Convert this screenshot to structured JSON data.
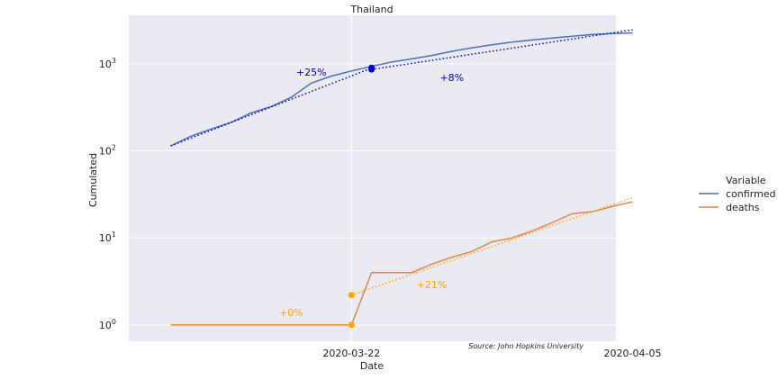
{
  "chart_data": {
    "type": "line",
    "title": "Thailand",
    "xlabel": "Date",
    "ylabel": "Cumulated",
    "yscale": "log",
    "ylim": [
      0.65,
      3600
    ],
    "grid": true,
    "legend": {
      "title": "Variable",
      "position": "right",
      "entries": [
        {
          "label": "confirmed",
          "color": "#4c72b0"
        },
        {
          "label": "deaths",
          "color": "#dd8452"
        }
      ]
    },
    "x_ticks": [
      {
        "date": "2020-03-22",
        "label": "2020-03-22"
      },
      {
        "date": "2020-04-05",
        "label": "2020-04-05"
      }
    ],
    "series": [
      {
        "name": "confirmed",
        "color": "#4c72b0",
        "points": [
          [
            "2020-03-13",
            114
          ],
          [
            "2020-03-14",
            147
          ],
          [
            "2020-03-15",
            177
          ],
          [
            "2020-03-16",
            212
          ],
          [
            "2020-03-17",
            272
          ],
          [
            "2020-03-18",
            322
          ],
          [
            "2020-03-19",
            411
          ],
          [
            "2020-03-20",
            599
          ],
          [
            "2020-03-21",
            721
          ],
          [
            "2020-03-22",
            827
          ],
          [
            "2020-03-23",
            934
          ],
          [
            "2020-03-24",
            1045
          ],
          [
            "2020-03-25",
            1136
          ],
          [
            "2020-03-26",
            1245
          ],
          [
            "2020-03-27",
            1388
          ],
          [
            "2020-03-28",
            1524
          ],
          [
            "2020-03-29",
            1651
          ],
          [
            "2020-03-30",
            1771
          ],
          [
            "2020-03-31",
            1875
          ],
          [
            "2020-04-01",
            1978
          ],
          [
            "2020-04-02",
            2067
          ],
          [
            "2020-04-03",
            2169
          ],
          [
            "2020-04-04",
            2220
          ],
          [
            "2020-04-05",
            2258
          ]
        ]
      },
      {
        "name": "deaths",
        "color": "#dd8452",
        "points": [
          [
            "2020-03-13",
            1
          ],
          [
            "2020-03-14",
            1
          ],
          [
            "2020-03-15",
            1
          ],
          [
            "2020-03-16",
            1
          ],
          [
            "2020-03-17",
            1
          ],
          [
            "2020-03-18",
            1
          ],
          [
            "2020-03-19",
            1
          ],
          [
            "2020-03-20",
            1
          ],
          [
            "2020-03-21",
            1
          ],
          [
            "2020-03-22",
            1
          ],
          [
            "2020-03-23",
            4
          ],
          [
            "2020-03-24",
            4
          ],
          [
            "2020-03-25",
            4
          ],
          [
            "2020-03-26",
            5
          ],
          [
            "2020-03-27",
            6
          ],
          [
            "2020-03-28",
            7
          ],
          [
            "2020-03-29",
            9
          ],
          [
            "2020-03-30",
            10
          ],
          [
            "2020-03-31",
            12
          ],
          [
            "2020-04-01",
            15
          ],
          [
            "2020-04-02",
            19
          ],
          [
            "2020-04-03",
            20
          ],
          [
            "2020-04-04",
            23
          ],
          [
            "2020-04-05",
            26
          ]
        ]
      }
    ],
    "trend_lines": [
      {
        "series": "confirmed",
        "color": "#0000cc",
        "style": "dotted",
        "segments": [
          {
            "from": [
              "2020-03-13",
              114
            ],
            "to": [
              "2020-03-23",
              890
            ],
            "label": "+25%",
            "label_at": [
              "2020-03-20",
              800
            ]
          },
          {
            "from": [
              "2020-03-23",
              860
            ],
            "to": [
              "2020-04-05",
              2450
            ],
            "label": "+8%",
            "label_at": [
              "2020-03-27",
              700
            ]
          }
        ],
        "markers": [
          [
            "2020-03-23",
            900
          ],
          [
            "2020-03-23",
            860
          ]
        ]
      },
      {
        "series": "deaths",
        "color": "#ffa500",
        "style": "dotted",
        "segments": [
          {
            "from": [
              "2020-03-13",
              1
            ],
            "to": [
              "2020-03-22",
              1
            ],
            "label": "+0%",
            "label_at": [
              "2020-03-19",
              1.4
            ]
          },
          {
            "from": [
              "2020-03-22",
              2.2
            ],
            "to": [
              "2020-04-05",
              29
            ],
            "label": "+21%",
            "label_at": [
              "2020-03-26",
              2.9
            ]
          }
        ],
        "markers": [
          [
            "2020-03-22",
            1
          ],
          [
            "2020-03-22",
            2.2
          ]
        ]
      }
    ],
    "annotations": [
      {
        "text": "Source: John Hopkins University",
        "position": "bottom-right"
      }
    ]
  }
}
